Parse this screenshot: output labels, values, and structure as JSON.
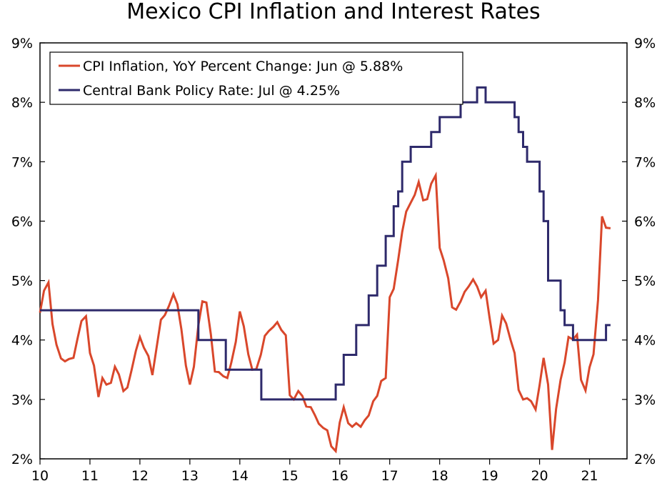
{
  "chart_data": {
    "type": "line",
    "title": "Mexico CPI Inflation and Interest Rates",
    "xlabel": "",
    "ylabel": "",
    "ylim": [
      2,
      9
    ],
    "xlim": [
      2010.0,
      2021.75
    ],
    "grid": false,
    "legend_position": "top-left",
    "x_ticks": [
      2010,
      2011,
      2012,
      2013,
      2014,
      2015,
      2016,
      2017,
      2018,
      2019,
      2020,
      2021
    ],
    "x_tick_labels": [
      "10",
      "11",
      "12",
      "13",
      "14",
      "15",
      "16",
      "17",
      "18",
      "19",
      "20",
      "21"
    ],
    "y_ticks": [
      2,
      3,
      4,
      5,
      6,
      7,
      8,
      9
    ],
    "y_tick_labels_left": [
      "2%",
      "3%",
      "4%",
      "5%",
      "6%",
      "7%",
      "8%",
      "9%"
    ],
    "y_tick_labels_right": [
      "2%",
      "3%",
      "4%",
      "5%",
      "6%",
      "7%",
      "8%",
      "9%"
    ],
    "series": [
      {
        "name": "CPI Inflation, YoY Percent Change: Jun @ 5.88%",
        "color": "#d9472b",
        "x": [
          2010.0,
          2010.08,
          2010.17,
          2010.25,
          2010.33,
          2010.42,
          2010.5,
          2010.58,
          2010.67,
          2010.75,
          2010.83,
          2010.92,
          2011.0,
          2011.08,
          2011.17,
          2011.25,
          2011.33,
          2011.42,
          2011.5,
          2011.58,
          2011.67,
          2011.75,
          2011.83,
          2011.92,
          2012.0,
          2012.08,
          2012.17,
          2012.25,
          2012.33,
          2012.42,
          2012.5,
          2012.58,
          2012.67,
          2012.75,
          2012.83,
          2012.92,
          2013.0,
          2013.08,
          2013.17,
          2013.25,
          2013.33,
          2013.42,
          2013.5,
          2013.58,
          2013.67,
          2013.75,
          2013.83,
          2013.92,
          2014.0,
          2014.08,
          2014.17,
          2014.25,
          2014.33,
          2014.42,
          2014.5,
          2014.58,
          2014.67,
          2014.75,
          2014.83,
          2014.92,
          2015.0,
          2015.08,
          2015.17,
          2015.25,
          2015.33,
          2015.42,
          2015.5,
          2015.58,
          2015.67,
          2015.75,
          2015.83,
          2015.92,
          2016.0,
          2016.08,
          2016.17,
          2016.25,
          2016.33,
          2016.42,
          2016.5,
          2016.58,
          2016.67,
          2016.75,
          2016.83,
          2016.92,
          2017.0,
          2017.08,
          2017.17,
          2017.25,
          2017.33,
          2017.42,
          2017.5,
          2017.58,
          2017.67,
          2017.75,
          2017.83,
          2017.92,
          2018.0,
          2018.08,
          2018.17,
          2018.25,
          2018.33,
          2018.42,
          2018.5,
          2018.58,
          2018.67,
          2018.75,
          2018.83,
          2018.92,
          2019.0,
          2019.08,
          2019.17,
          2019.25,
          2019.33,
          2019.42,
          2019.5,
          2019.58,
          2019.67,
          2019.75,
          2019.83,
          2019.92,
          2020.0,
          2020.08,
          2020.17,
          2020.25,
          2020.33,
          2020.42,
          2020.5,
          2020.58,
          2020.67,
          2020.75,
          2020.83,
          2020.92,
          2021.0,
          2021.08,
          2021.17,
          2021.25,
          2021.33,
          2021.42
        ],
        "values": [
          4.46,
          4.83,
          4.97,
          4.27,
          3.92,
          3.69,
          3.64,
          3.68,
          3.7,
          4.02,
          4.32,
          4.4,
          3.78,
          3.57,
          3.04,
          3.36,
          3.25,
          3.28,
          3.55,
          3.42,
          3.14,
          3.2,
          3.48,
          3.82,
          4.05,
          3.87,
          3.73,
          3.41,
          3.85,
          4.34,
          4.42,
          4.57,
          4.77,
          4.6,
          4.18,
          3.57,
          3.25,
          3.55,
          4.25,
          4.65,
          4.63,
          4.09,
          3.47,
          3.46,
          3.39,
          3.36,
          3.62,
          3.97,
          4.48,
          4.23,
          3.76,
          3.5,
          3.51,
          3.75,
          4.07,
          4.15,
          4.22,
          4.3,
          4.17,
          4.08,
          3.07,
          3.0,
          3.14,
          3.06,
          2.88,
          2.87,
          2.74,
          2.59,
          2.52,
          2.48,
          2.21,
          2.13,
          2.61,
          2.87,
          2.6,
          2.54,
          2.6,
          2.54,
          2.65,
          2.73,
          2.97,
          3.06,
          3.31,
          3.36,
          4.72,
          4.86,
          5.35,
          5.82,
          6.16,
          6.31,
          6.44,
          6.66,
          6.35,
          6.37,
          6.63,
          6.77,
          5.55,
          5.34,
          5.04,
          4.55,
          4.51,
          4.65,
          4.81,
          4.9,
          5.02,
          4.9,
          4.72,
          4.83,
          4.37,
          3.94,
          4.0,
          4.41,
          4.28,
          4.0,
          3.78,
          3.16,
          3.0,
          3.02,
          2.97,
          2.83,
          3.24,
          3.7,
          3.25,
          2.15,
          2.84,
          3.33,
          3.62,
          4.05,
          4.01,
          4.09,
          3.33,
          3.15,
          3.54,
          3.76,
          4.67,
          6.08,
          5.89,
          5.88
        ]
      },
      {
        "name": "Central Bank Policy Rate: Jul @ 4.25%",
        "color": "#2e2a6b",
        "x": [
          2010.0,
          2013.17,
          2013.17,
          2013.72,
          2013.72,
          2014.43,
          2014.43,
          2015.92,
          2015.92,
          2016.08,
          2016.08,
          2016.33,
          2016.33,
          2016.58,
          2016.58,
          2016.75,
          2016.75,
          2016.92,
          2016.92,
          2017.08,
          2017.08,
          2017.17,
          2017.17,
          2017.25,
          2017.25,
          2017.42,
          2017.42,
          2017.83,
          2017.83,
          2017.92,
          2017.92,
          2018.0,
          2018.0,
          2018.25,
          2018.25,
          2018.42,
          2018.42,
          2018.75,
          2018.75,
          2018.92,
          2018.92,
          2019.5,
          2019.5,
          2019.58,
          2019.58,
          2019.67,
          2019.67,
          2019.75,
          2019.75,
          2019.92,
          2019.92,
          2020.0,
          2020.0,
          2020.08,
          2020.08,
          2020.17,
          2020.17,
          2020.42,
          2020.42,
          2020.5,
          2020.5,
          2020.58,
          2020.58,
          2020.67,
          2020.67,
          2021.0,
          2021.0,
          2021.08,
          2021.08,
          2021.33,
          2021.33,
          2021.42
        ],
        "values": [
          4.5,
          4.5,
          4.0,
          4.0,
          3.5,
          3.5,
          3.0,
          3.0,
          3.25,
          3.25,
          3.75,
          3.75,
          4.25,
          4.25,
          4.75,
          4.75,
          5.25,
          5.25,
          5.75,
          5.75,
          6.25,
          6.25,
          6.5,
          6.5,
          7.0,
          7.0,
          7.25,
          7.25,
          7.5,
          7.5,
          7.5,
          7.5,
          7.75,
          7.75,
          7.75,
          7.75,
          8.0,
          8.0,
          8.25,
          8.25,
          8.0,
          8.0,
          7.75,
          7.75,
          7.5,
          7.5,
          7.25,
          7.25,
          7.0,
          7.0,
          7.0,
          7.0,
          6.5,
          6.5,
          6.0,
          6.0,
          5.0,
          5.0,
          4.5,
          4.5,
          4.25,
          4.25,
          4.25,
          4.25,
          4.0,
          4.0,
          4.0,
          4.0,
          4.0,
          4.0,
          4.25,
          4.25
        ]
      }
    ]
  }
}
